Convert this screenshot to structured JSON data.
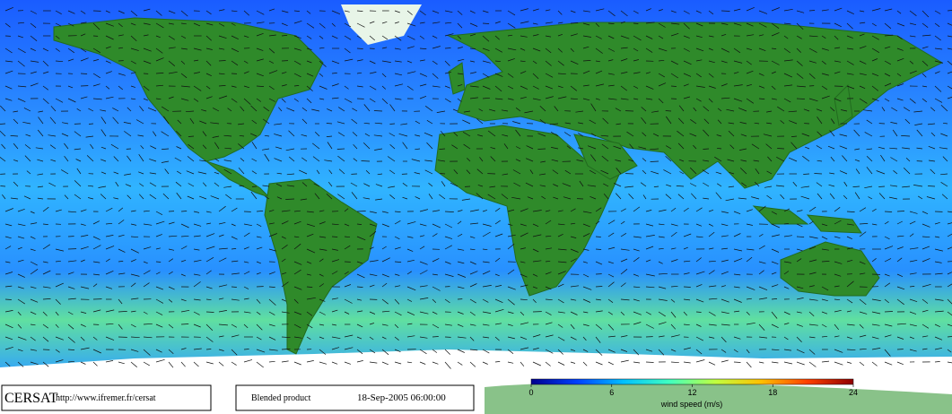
{
  "logo": "CERSAT",
  "url": "http://www.ifremer.fr/cersat",
  "product": "Blended product",
  "timestamp": "18-Sep-2005 06:00:00",
  "colorbar": {
    "label": "wind speed (m/s)",
    "lim": [
      0,
      24
    ],
    "ticks": [
      0,
      6,
      12,
      18,
      24
    ],
    "colors": [
      "#00008f",
      "#0040ff",
      "#00c0ff",
      "#40ffc0",
      "#c0ff40",
      "#ffc000",
      "#ff4000",
      "#8f0000"
    ]
  }
}
